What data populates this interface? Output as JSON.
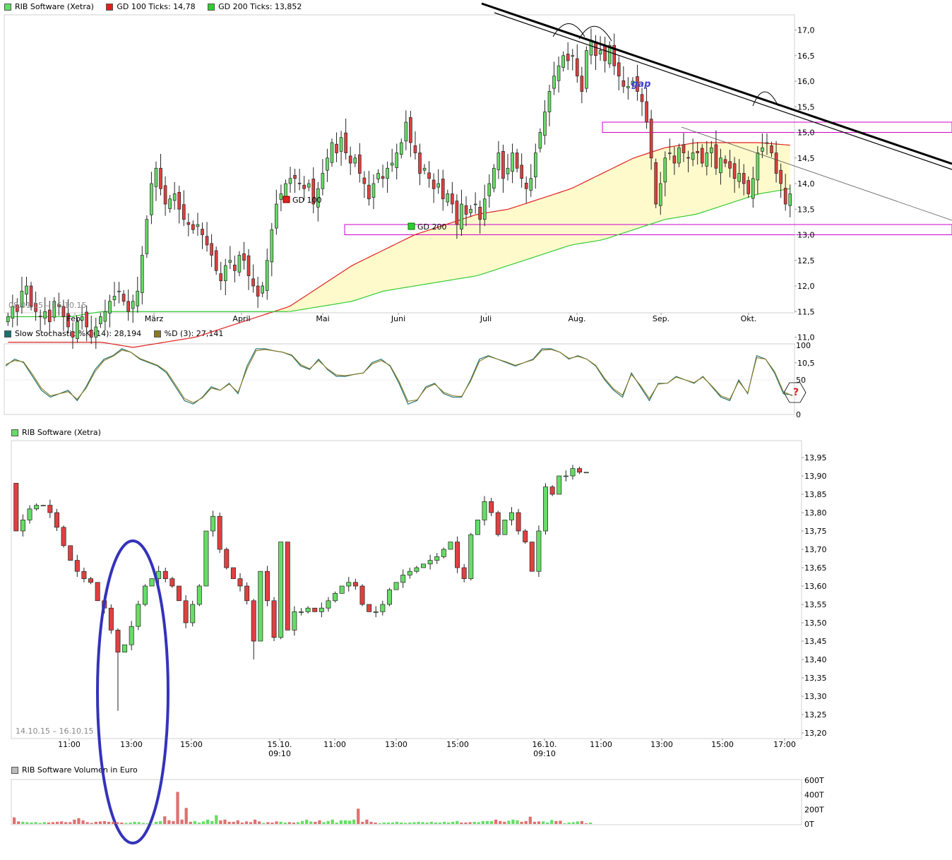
{
  "panel1": {
    "legend": [
      {
        "label": "RIB Software (Xetra)",
        "color": "#66dd66"
      },
      {
        "label": "GD 100 Ticks: 14,78",
        "color": "#e02020"
      },
      {
        "label": "GD 200 Ticks: 13,852",
        "color": "#33cc33"
      }
    ],
    "date_range": "08.01.15 – 16.10.15",
    "gd100_label": "GD 100",
    "gd200_label": "GD 200",
    "gap_label": "gap",
    "colors": {
      "up": "#66dd66",
      "down": "#e04040",
      "gd100": "#e02020",
      "gd200": "#33cc33",
      "fill": "#fffacc",
      "band": "#cc00cc",
      "trend": "#000000"
    }
  },
  "panel2": {
    "legend": [
      {
        "label": "Slow Stochastic %K (14): 28,194",
        "color": "#1c6f6f"
      },
      {
        "label": "%D (3): 27,141",
        "color": "#8a7a20"
      }
    ],
    "question_mark": "?"
  },
  "panel3": {
    "legend": [
      {
        "label": "RIB Software (Xetra)",
        "color": "#66dd66"
      }
    ],
    "date_range": "14.10.15 – 16.10.15"
  },
  "panel4": {
    "legend": [
      {
        "label": "RIB Software Volumen in Euro",
        "color": "#bbbbbb"
      }
    ]
  },
  "chart_data": [
    {
      "type": "candlestick",
      "title": "RIB Software (Xetra)",
      "period": "08.01.15 – 16.10.15",
      "ylim": [
        10.0,
        17.3
      ],
      "y_ticks": [
        "17,0",
        "16,5",
        "16,0",
        "15,5",
        "15,0",
        "14,5",
        "14,0",
        "13,5",
        "13,0",
        "12,5",
        "12,0",
        "11,5",
        "11,0",
        "10,5"
      ],
      "x_ticks": [
        "Feb.",
        "März",
        "April",
        "Mai",
        "Juni",
        "Juli",
        "Aug.",
        "Sep.",
        "Okt."
      ],
      "close": [
        11.4,
        11.6,
        11.5,
        11.9,
        12.0,
        11.6,
        11.5,
        11.4,
        11.5,
        11.3,
        11.7,
        11.6,
        11.4,
        11.2,
        11.0,
        11.3,
        11.4,
        11.2,
        11.0,
        11.2,
        11.4,
        11.5,
        11.7,
        11.8,
        11.9,
        11.7,
        11.5,
        11.7,
        11.9,
        12.6,
        13.3,
        14.0,
        14.3,
        13.9,
        13.6,
        13.7,
        13.8,
        13.5,
        13.3,
        13.2,
        13.1,
        13.2,
        13.0,
        12.8,
        12.6,
        12.3,
        12.1,
        12.4,
        12.5,
        12.3,
        12.6,
        12.5,
        12.2,
        12.0,
        11.8,
        12.0,
        12.5,
        13.1,
        13.6,
        13.8,
        14.0,
        14.1,
        14.1,
        14.0,
        13.9,
        14.0,
        13.6,
        13.9,
        14.2,
        14.5,
        14.8,
        14.6,
        14.9,
        14.6,
        14.4,
        14.5,
        14.2,
        14.0,
        13.7,
        14.0,
        14.2,
        14.1,
        14.3,
        14.4,
        14.6,
        14.8,
        15.2,
        14.8,
        14.6,
        14.2,
        14.3,
        14.1,
        13.9,
        14.0,
        13.7,
        13.8,
        13.6,
        13.2,
        13.6,
        13.4,
        13.5,
        13.6,
        13.3,
        13.7,
        14.0,
        14.3,
        14.6,
        14.1,
        14.3,
        14.6,
        14.3,
        14.1,
        13.9,
        14.1,
        14.6,
        15.0,
        15.4,
        15.8,
        16.1,
        16.3,
        16.5,
        16.4,
        16.5,
        16.1,
        15.8,
        16.6,
        16.8,
        16.5,
        16.6,
        16.4,
        16.7,
        16.3,
        16.1,
        15.9,
        15.9,
        16.0,
        15.8,
        15.6,
        15.2,
        14.5,
        13.6,
        14.0,
        14.5,
        14.6,
        14.4,
        14.7,
        14.6,
        14.5,
        14.6,
        14.6,
        14.4,
        14.6,
        14.7,
        14.3,
        14.5,
        14.4,
        14.3,
        14.1,
        14.2,
        14.0,
        13.8,
        14.1,
        14.6,
        14.7,
        14.8,
        14.6,
        14.2,
        14.0,
        13.6,
        13.8
      ],
      "gd100": [
        10.9,
        10.9,
        10.9,
        10.9,
        10.8,
        10.9,
        11.0,
        11.2,
        11.4,
        11.6,
        12.0,
        12.4,
        12.7,
        13.0,
        13.2,
        13.4,
        13.5,
        13.7,
        13.9,
        14.2,
        14.5,
        14.7,
        14.8,
        14.8,
        14.8,
        14.75
      ],
      "gd200": [
        11.4,
        11.4,
        11.4,
        11.5,
        11.5,
        11.5,
        11.5,
        11.5,
        11.5,
        11.5,
        11.6,
        11.7,
        11.9,
        12.0,
        12.1,
        12.2,
        12.4,
        12.6,
        12.8,
        12.9,
        13.1,
        13.3,
        13.4,
        13.6,
        13.8,
        13.9
      ],
      "horizontal_bands": [
        {
          "from": 15.0,
          "to": 15.2
        },
        {
          "from": 13.0,
          "to": 13.2
        }
      ]
    },
    {
      "type": "line",
      "title": "Slow Stochastic",
      "ylim": [
        0,
        100
      ],
      "y_ticks": [
        "100",
        "50",
        "0"
      ],
      "series": [
        {
          "name": "Slow Stochastic %K (14)",
          "values": [
            70,
            80,
            75,
            55,
            35,
            25,
            30,
            35,
            20,
            40,
            65,
            80,
            85,
            95,
            90,
            80,
            75,
            70,
            60,
            40,
            20,
            15,
            25,
            40,
            35,
            45,
            30,
            70,
            95,
            95,
            92,
            90,
            85,
            70,
            65,
            80,
            65,
            55,
            55,
            58,
            60,
            75,
            80,
            70,
            45,
            15,
            20,
            40,
            45,
            30,
            25,
            25,
            50,
            80,
            85,
            80,
            75,
            70,
            75,
            80,
            95,
            95,
            90,
            80,
            85,
            80,
            70,
            50,
            35,
            25,
            60,
            40,
            20,
            45,
            45,
            55,
            50,
            45,
            55,
            40,
            25,
            20,
            50,
            30,
            85,
            80,
            60,
            30,
            28
          ]
        },
        {
          "name": "%D (3)",
          "values": [
            72,
            78,
            76,
            58,
            38,
            27,
            30,
            33,
            22,
            38,
            62,
            78,
            84,
            93,
            90,
            81,
            76,
            71,
            62,
            43,
            23,
            17,
            24,
            38,
            35,
            44,
            32,
            66,
            92,
            94,
            92,
            90,
            86,
            72,
            66,
            78,
            66,
            57,
            56,
            58,
            60,
            73,
            78,
            71,
            48,
            19,
            21,
            38,
            44,
            32,
            27,
            26,
            48,
            77,
            84,
            80,
            76,
            71,
            75,
            79,
            93,
            94,
            90,
            81,
            84,
            80,
            71,
            52,
            37,
            28,
            58,
            42,
            23,
            44,
            45,
            54,
            50,
            46,
            54,
            41,
            27,
            22,
            48,
            31,
            82,
            80,
            62,
            33,
            27
          ]
        }
      ]
    },
    {
      "type": "candlestick",
      "title": "RIB Software (Xetra)",
      "period": "14.10.15 – 16.10.15",
      "ylim": [
        13.18,
        13.98
      ],
      "y_ticks": [
        "13,95",
        "13,90",
        "13,85",
        "13,80",
        "13,75",
        "13,70",
        "13,65",
        "13,60",
        "13,55",
        "13,50",
        "13,45",
        "13,40",
        "13,35",
        "13,30",
        "13,25",
        "13,20"
      ],
      "x_ticks": [
        "11:00",
        "13:00",
        "15:00",
        "15.10.\n09:10",
        "11:00",
        "13:00",
        "15:00",
        "16.10.\n09:10",
        "11:00",
        "13:00",
        "15:00",
        "17:00"
      ],
      "close": [
        13.75,
        13.78,
        13.81,
        13.82,
        13.82,
        13.8,
        13.76,
        13.71,
        13.67,
        13.64,
        13.62,
        13.61,
        13.56,
        13.54,
        13.48,
        13.42,
        13.44,
        13.49,
        13.55,
        13.6,
        13.62,
        13.64,
        13.62,
        13.6,
        13.56,
        13.5,
        13.55,
        13.6,
        13.75,
        13.79,
        13.7,
        13.65,
        13.62,
        13.6,
        13.56,
        13.45,
        13.64,
        13.56,
        13.46,
        13.72,
        13.48,
        13.53,
        13.53,
        13.54,
        13.53,
        13.54,
        13.56,
        13.58,
        13.6,
        13.61,
        13.6,
        13.55,
        13.53,
        13.53,
        13.55,
        13.59,
        13.61,
        13.63,
        13.64,
        13.65,
        13.66,
        13.67,
        13.68,
        13.7,
        13.72,
        13.65,
        13.62,
        13.74,
        13.78,
        13.83,
        13.8,
        13.74,
        13.78,
        13.8,
        13.75,
        13.72,
        13.64,
        13.75,
        13.87,
        13.85,
        13.9,
        13.9,
        13.92,
        13.91,
        13.91
      ],
      "highlight": "ellipse around 13:00 drop (low 13,26)"
    },
    {
      "type": "bar",
      "title": "RIB Software Volumen in Euro",
      "ylim": [
        0,
        600
      ],
      "y_ticks": [
        "600T",
        "400T",
        "200T",
        "0T"
      ],
      "values": [
        90,
        35,
        30,
        25,
        20,
        25,
        15,
        25,
        20,
        25,
        30,
        35,
        25,
        25,
        60,
        80,
        50,
        25,
        15,
        30,
        35,
        40,
        30,
        30,
        25,
        20,
        15,
        20,
        30,
        25,
        15,
        10,
        5,
        30,
        40,
        105,
        50,
        40,
        440,
        60,
        220,
        30,
        40,
        20,
        35,
        60,
        40,
        120,
        50,
        60,
        30,
        30,
        50,
        20,
        35,
        25,
        60,
        35,
        15,
        25,
        20,
        35,
        30,
        20,
        25,
        20,
        25,
        40,
        60,
        35,
        30,
        50,
        25,
        40,
        60,
        20,
        50,
        50,
        45,
        60,
        210,
        30,
        60,
        30,
        20,
        10,
        20,
        20,
        20,
        30,
        20,
        15,
        20,
        25,
        30,
        25,
        20,
        30,
        20,
        20,
        30,
        20,
        30,
        40,
        20,
        20,
        25,
        30,
        25,
        40,
        40,
        40,
        60,
        40,
        30,
        45,
        60,
        50,
        30,
        40,
        100,
        30,
        35,
        35,
        20,
        55,
        40,
        45,
        10,
        20,
        25,
        35,
        40,
        10,
        20
      ]
    }
  ]
}
